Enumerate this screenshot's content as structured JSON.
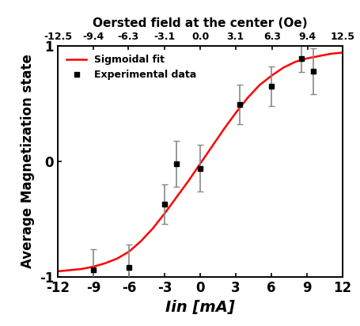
{
  "chart_data": {
    "type": "scatter",
    "xlabel": "Iin [mA]",
    "ylabel": "Average Magnetization state",
    "x2label": "Oersted field at the center (Oe)",
    "xlim": [
      -12,
      12
    ],
    "xticks": [
      -12,
      -9,
      -6,
      -3,
      0,
      3,
      6,
      9,
      12
    ],
    "x2lim": [
      -12.5,
      12.5
    ],
    "x2ticks": [
      -12.5,
      -9.4,
      -6.3,
      -3.1,
      0.0,
      3.1,
      6.3,
      9.4,
      12.5
    ],
    "ylim": [
      -1,
      1
    ],
    "yticks": [
      -1,
      0,
      1
    ],
    "legend": "upper left",
    "series": [
      {
        "name": "Sigmoidal fit",
        "type": "line",
        "color": "#ff0000",
        "line_style": "solid",
        "x": [
          -12,
          -11,
          -10,
          -9,
          -8,
          -7,
          -6,
          -5,
          -4,
          -3,
          -2,
          -1,
          0,
          1,
          2,
          3,
          4,
          5,
          6,
          7,
          8,
          9,
          10,
          11,
          12
        ],
        "values": [
          -0.95,
          -0.94,
          -0.93,
          -0.91,
          -0.88,
          -0.84,
          -0.78,
          -0.69,
          -0.58,
          -0.45,
          -0.31,
          -0.17,
          -0.02,
          0.13,
          0.28,
          0.42,
          0.55,
          0.66,
          0.74,
          0.81,
          0.86,
          0.89,
          0.91,
          0.93,
          0.94
        ]
      },
      {
        "name": "Experimental data",
        "type": "scatter",
        "color": "#000000",
        "marker": "square",
        "x": [
          -9,
          -6,
          -3,
          -2,
          0,
          3.3,
          6,
          8.5,
          9.5
        ],
        "values": [
          -0.94,
          -0.92,
          -0.37,
          -0.02,
          -0.06,
          0.49,
          0.65,
          0.89,
          0.78
        ],
        "errors": [
          0.18,
          0.2,
          0.17,
          0.2,
          0.2,
          0.17,
          0.17,
          0.12,
          0.2
        ]
      }
    ]
  }
}
